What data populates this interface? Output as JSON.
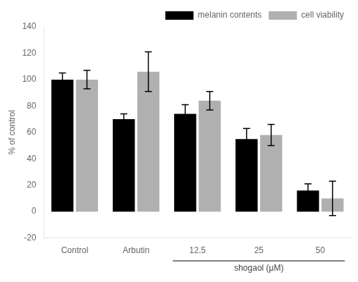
{
  "chart_data": {
    "type": "bar",
    "categories": [
      "Control",
      "Arbutin",
      "12.5",
      "25",
      "50"
    ],
    "series": [
      {
        "name": "melanin contents",
        "color": "#000000",
        "values": [
          100,
          70,
          74,
          55,
          16
        ],
        "errors": [
          5,
          4,
          7,
          8,
          5
        ]
      },
      {
        "name": "cell viability",
        "color": "#b0b0b0",
        "values": [
          100,
          106,
          84,
          58,
          10
        ],
        "errors": [
          7,
          15,
          7,
          8,
          13
        ]
      }
    ],
    "ylabel": "% of control",
    "ylim": [
      -20,
      140
    ],
    "yticks": [
      -20,
      0,
      20,
      40,
      60,
      80,
      100,
      120,
      140
    ],
    "grid": false,
    "legend": "upper right",
    "annotations": [
      {
        "text": "shogaol (μM)",
        "from": "12.5",
        "to": "50"
      }
    ]
  }
}
